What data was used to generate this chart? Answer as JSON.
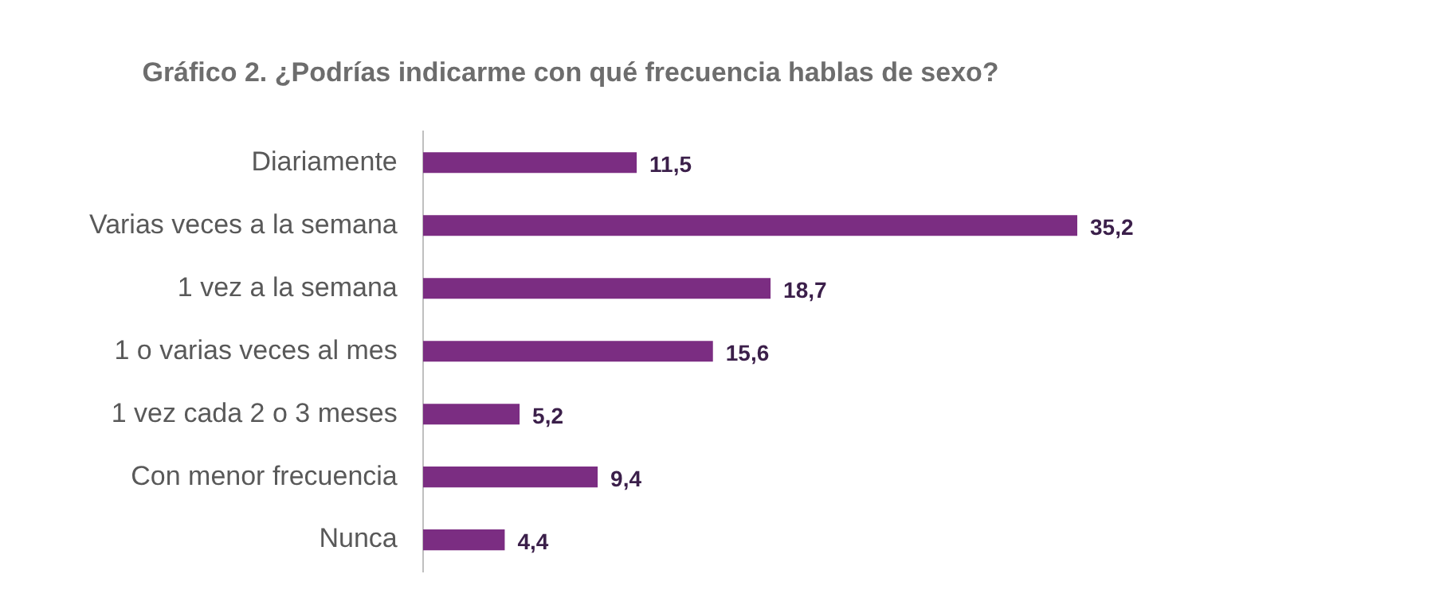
{
  "chart_data": {
    "type": "bar",
    "orientation": "horizontal",
    "title": "Gráfico 2. ¿Podrías indicarme con qué frecuencia hablas de sexo?",
    "categories": [
      "Diariamente",
      "Varias veces a la semana",
      "1 vez a la semana",
      "1 o varias veces al mes",
      "1 vez cada 2 o 3 meses",
      "Con menor frecuencia",
      "Nunca"
    ],
    "values": [
      11.5,
      35.2,
      18.7,
      15.6,
      5.2,
      9.4,
      4.4
    ],
    "value_labels": [
      "11,5",
      "35,2",
      "18,7",
      "15,6",
      "5,2",
      "9,4",
      "4,4"
    ],
    "color": "#7b2d82",
    "grid": false,
    "legend": false
  }
}
